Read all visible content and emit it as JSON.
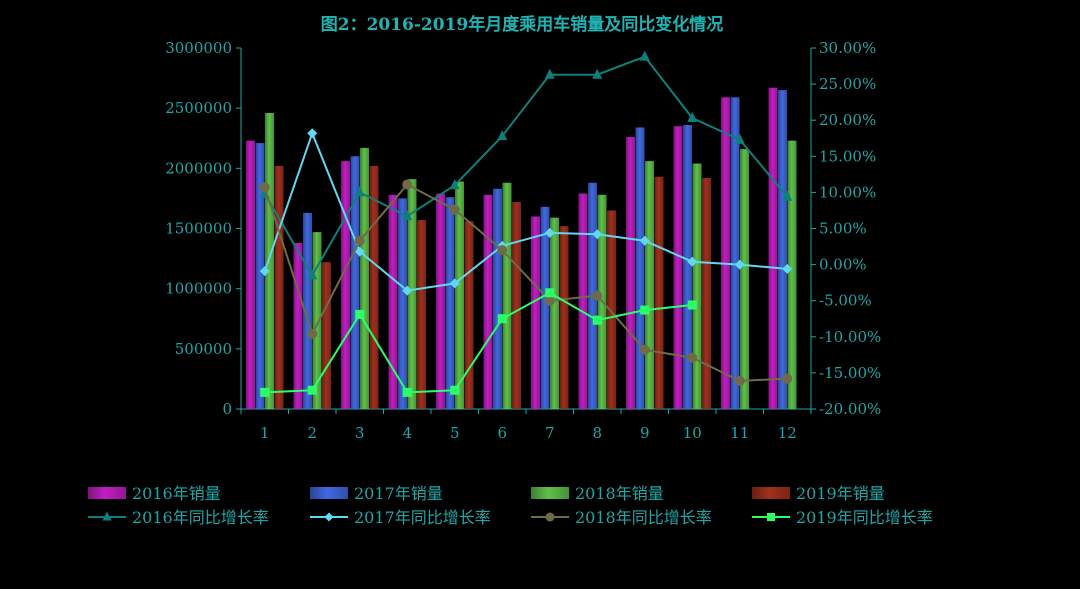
{
  "chart_data": {
    "type": "bar",
    "title": "图2：2016-2019年月度乘用车销量及同比变化情况",
    "categories": [
      "1",
      "2",
      "3",
      "4",
      "5",
      "6",
      "7",
      "8",
      "9",
      "10",
      "11",
      "12"
    ],
    "y_left": {
      "range": [
        0,
        3000000
      ],
      "ticks": [
        "0",
        "500000",
        "1000000",
        "1500000",
        "2000000",
        "2500000",
        "3000000"
      ]
    },
    "y_right": {
      "range": [
        -20,
        30
      ],
      "ticks": [
        "-20.00%",
        "-15.00%",
        "-10.00%",
        "-5.00%",
        "0.00%",
        "5.00%",
        "10.00%",
        "15.00%",
        "20.00%",
        "25.00%",
        "30.00%"
      ]
    },
    "bar_series": [
      {
        "name": "2016年销量",
        "color": "#c21ec2",
        "values": [
          2230000,
          1380000,
          2060000,
          1780000,
          1790000,
          1780000,
          1600000,
          1790000,
          2260000,
          2350000,
          2590000,
          2670000
        ]
      },
      {
        "name": "2017年销量",
        "color": "#4169e1",
        "values": [
          2210000,
          1630000,
          2100000,
          1750000,
          1760000,
          1830000,
          1680000,
          1880000,
          2340000,
          2360000,
          2590000,
          2650000
        ]
      },
      {
        "name": "2018年销量",
        "color": "#5ec14a",
        "values": [
          2460000,
          1470000,
          2170000,
          1910000,
          1890000,
          1880000,
          1590000,
          1780000,
          2060000,
          2040000,
          2160000,
          2230000
        ]
      },
      {
        "name": "2019年销量",
        "color": "#a0301e",
        "values": [
          2020000,
          1220000,
          2020000,
          1570000,
          1560000,
          1720000,
          1520000,
          1650000,
          1930000,
          1920000,
          null,
          null
        ]
      }
    ],
    "line_series": [
      {
        "name": "2016年同比增长率",
        "color": "#0f7f7a",
        "marker": "triangle",
        "values": [
          9.8,
          -1.5,
          10.0,
          6.7,
          11.0,
          17.8,
          26.3,
          26.3,
          28.8,
          20.3,
          17.3,
          9.4
        ]
      },
      {
        "name": "2017年同比增长率",
        "color": "#5fd8f0",
        "marker": "diamond",
        "values": [
          -0.9,
          18.2,
          1.8,
          -3.6,
          -2.6,
          2.6,
          4.4,
          4.2,
          3.3,
          0.4,
          0.0,
          -0.6
        ]
      },
      {
        "name": "2018年同比增长率",
        "color": "#6f6a48",
        "marker": "circle",
        "values": [
          10.7,
          -9.6,
          3.3,
          11.1,
          7.6,
          2.0,
          -5.0,
          -4.3,
          -11.8,
          -12.9,
          -16.1,
          -15.8
        ]
      },
      {
        "name": "2019年同比增长率",
        "color": "#2aff6a",
        "marker": "square",
        "values": [
          -17.7,
          -17.4,
          -6.9,
          -17.7,
          -17.4,
          -7.5,
          -3.9,
          -7.7,
          -6.3,
          -5.6,
          null,
          null
        ]
      }
    ],
    "legend_position": "bottom",
    "grid": false
  }
}
